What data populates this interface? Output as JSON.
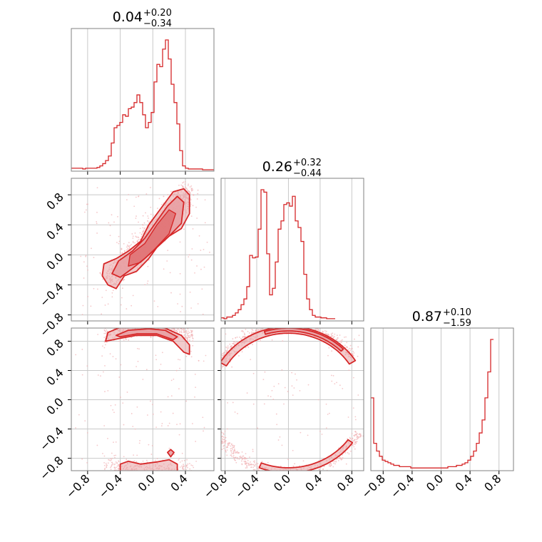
{
  "figure": {
    "accent_color": "#d62728",
    "fill_color": "#e8a0a3",
    "grid_color": "#c8c8c8",
    "panel_titles": [
      {
        "value": "0.04",
        "plus": "+0.20",
        "minus": "−0.34"
      },
      {
        "value": "0.26",
        "plus": "+0.32",
        "minus": "−0.44"
      },
      {
        "value": "0.87",
        "plus": "+0.10",
        "minus": "−1.59"
      }
    ],
    "x_tick_labels": [
      "−0.8",
      "−0.4",
      "0.0",
      "0.4",
      "0.8"
    ],
    "y_tick_labels": [
      "0.8",
      "0.4",
      "0.0",
      "−0.4",
      "−0.8"
    ]
  },
  "chart_data": [
    {
      "type": "histogram",
      "panel": "diag-1",
      "xlim": [
        -1.0,
        0.75
      ],
      "grid": true,
      "bin_edges_start": -1.0,
      "bin_width": 0.035,
      "counts": [
        2,
        2,
        2,
        2,
        1,
        2,
        2,
        2,
        2,
        3,
        5,
        8,
        12,
        18,
        35,
        55,
        58,
        62,
        72,
        70,
        80,
        82,
        88,
        98,
        88,
        72,
        55,
        62,
        75,
        115,
        138,
        135,
        158,
        170,
        145,
        112,
        88,
        60,
        25,
        5,
        2,
        1,
        1,
        1,
        1,
        1,
        0,
        0,
        0,
        0
      ]
    },
    {
      "type": "histogram",
      "panel": "diag-2",
      "xlim": [
        -0.85,
        0.95
      ],
      "grid": true,
      "bin_edges_start": -0.85,
      "bin_width": 0.036,
      "counts": [
        2,
        1,
        3,
        3,
        5,
        8,
        12,
        18,
        25,
        40,
        78,
        75,
        76,
        110,
        158,
        155,
        80,
        30,
        38,
        70,
        110,
        120,
        140,
        142,
        138,
        150,
        120,
        112,
        95,
        55,
        25,
        12,
        5,
        3,
        3,
        2,
        2,
        1,
        1,
        1
      ]
    },
    {
      "type": "histogram",
      "panel": "diag-3",
      "xlim": [
        -0.97,
        1.0
      ],
      "grid": true,
      "bin_edges_start": -0.97,
      "bin_width": 0.0394,
      "counts": [
        55,
        20,
        14,
        10,
        7,
        6,
        5,
        4,
        3,
        3,
        2,
        2,
        2,
        2,
        1,
        1,
        1,
        1,
        1,
        1,
        1,
        1,
        1,
        1,
        1,
        1,
        1,
        2,
        2,
        2,
        3,
        3,
        4,
        5,
        7,
        10,
        14,
        20,
        28,
        38,
        55,
        75,
        100
      ]
    },
    {
      "type": "scatter-contour",
      "panel": "p21",
      "xlim": [
        -1.0,
        0.75
      ],
      "ylim": [
        -0.88,
        1.02
      ],
      "grid": true,
      "shape": "diagonal band from (-0.55,-0.35) to (0.45,0.85)"
    },
    {
      "type": "scatter-contour",
      "panel": "p31",
      "xlim": [
        -1.0,
        0.75
      ],
      "ylim": [
        -0.97,
        0.98
      ],
      "grid": true,
      "shape": "two arcs: upper near y=0.85..0.98, lower near y=-0.85..-0.97"
    },
    {
      "type": "scatter-contour",
      "panel": "p32",
      "xlim": [
        -0.85,
        0.95
      ],
      "ylim": [
        -0.97,
        0.98
      ],
      "grid": true,
      "shape": "unit-circle ring, x^2+y^2=1"
    }
  ]
}
